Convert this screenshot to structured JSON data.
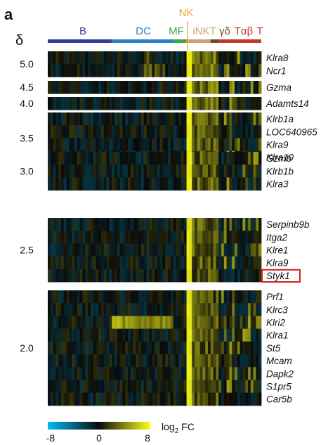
{
  "panel_label": "a",
  "delta_symbol": "δ",
  "colorbar": {
    "label_prefix": "log",
    "label_sub": "2",
    "label_suffix": " FC",
    "ticks": [
      "-8",
      "0",
      "8"
    ],
    "range": [
      -8,
      8
    ]
  },
  "groups": [
    {
      "label": "B",
      "color": "#2f3d9c"
    },
    {
      "label": "DC",
      "color": "#2f7fc4"
    },
    {
      "label": "MF",
      "color": "#3aab4a"
    },
    {
      "label": "NK",
      "color": "#f2a22a"
    },
    {
      "label": "iNKT",
      "color": "#c9a07a"
    },
    {
      "label": "γδ",
      "color": "#6b4a2a"
    },
    {
      "label": "Tαβ",
      "color": "#c0392b"
    },
    {
      "label": "T",
      "color": "#c0392b"
    }
  ],
  "highlight_gene": "Styk1",
  "highlight_color": "#d81e1e",
  "chart_data": {
    "type": "heatmap",
    "value_scale": "log2 FC",
    "blocks": [
      {
        "delta": "5.0",
        "genes": [
          "Klra8",
          "Ncr1"
        ]
      },
      {
        "delta": "4.5",
        "genes": [
          "Gzma"
        ]
      },
      {
        "delta": "4.0",
        "genes": [
          "Adamts14"
        ]
      },
      {
        "delta": "3.5",
        "genes": [
          "Klrb1a",
          "LOC640965",
          "Klra9",
          "Klra10"
        ]
      },
      {
        "delta": "3.0",
        "genes": [
          "Gzmb",
          "Klrb1b",
          "Klra3"
        ]
      },
      {
        "delta": "2.5",
        "genes": [
          "Serpinb9b",
          "Itga2",
          "Klre1",
          "Klra9",
          "Styk1"
        ]
      },
      {
        "delta": "2.0",
        "genes": [
          "Prf1",
          "Klrc3",
          "Klri2",
          "Klra1",
          "St5",
          "Mcam",
          "Dapk2",
          "S1pr5",
          "Car5b"
        ]
      }
    ]
  }
}
